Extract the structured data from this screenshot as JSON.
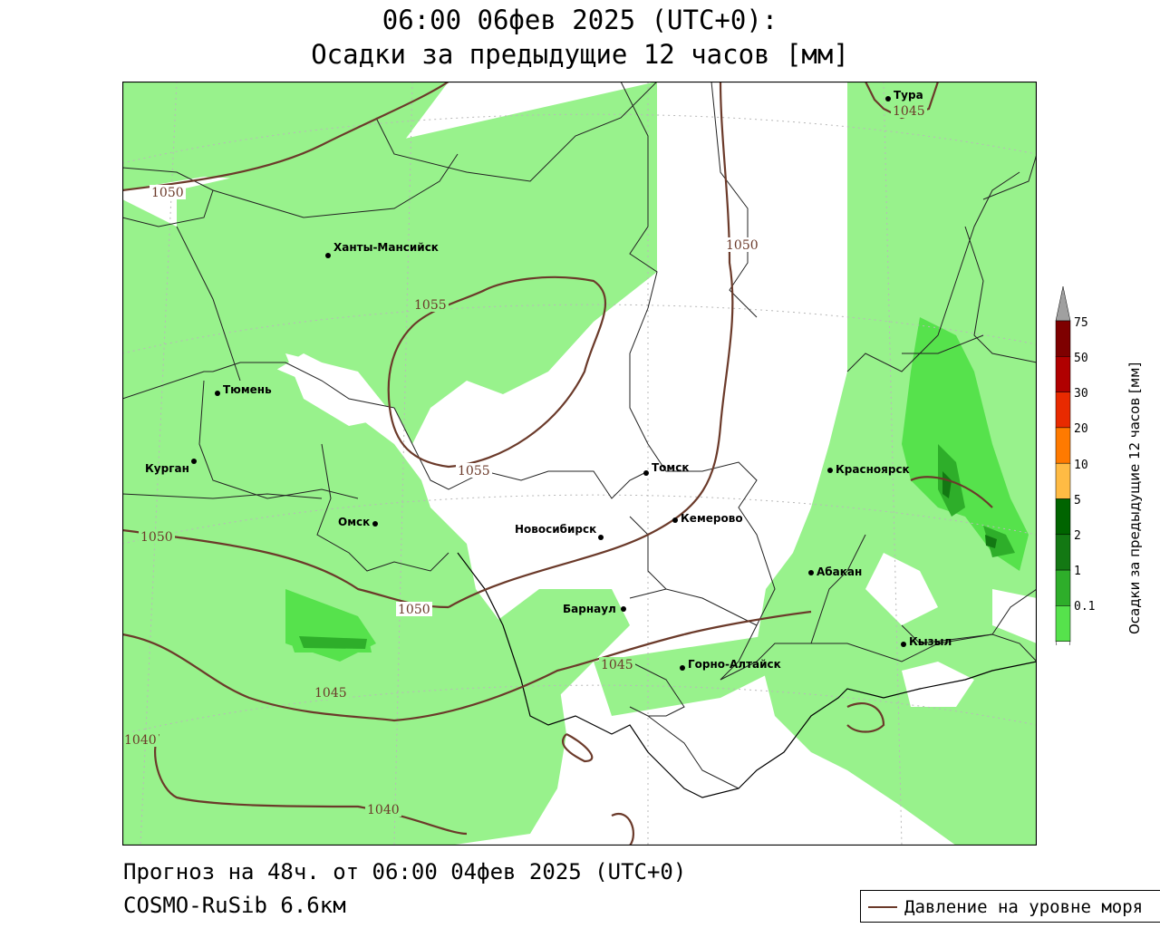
{
  "title": {
    "line1": "06:00 06фев 2025 (UTC+0):",
    "line2": "Осадки за предыдущие 12 часов [мм]"
  },
  "footer": {
    "forecast": "Прогноз на 48ч. от 06:00 04фев 2025 (UTC+0)",
    "model": "COSMO-RuSib 6.6км"
  },
  "legend": {
    "pressure_label": "Давление на уровне моря",
    "pressure_color": "#6b3a2a"
  },
  "colorbar": {
    "title": "Осадки за предыдущие 12 часов [мм]",
    "levels": [
      "0.1",
      "1",
      "2",
      "5",
      "10",
      "20",
      "30",
      "50",
      "75"
    ],
    "colors": [
      "#98f28c",
      "#56e24c",
      "#2eae2a",
      "#137813",
      "#006400",
      "#ffbb44",
      "#ff7a00",
      "#e82a00",
      "#b00000",
      "#7e0000"
    ],
    "over_color": "#a0a0a0"
  },
  "cities": [
    {
      "name": "Тура"
    },
    {
      "name": "Ханты-Мансийск"
    },
    {
      "name": "Тюмень"
    },
    {
      "name": "Курган"
    },
    {
      "name": "Омск"
    },
    {
      "name": "Новосибирск"
    },
    {
      "name": "Томск"
    },
    {
      "name": "Кемерово"
    },
    {
      "name": "Красноярск"
    },
    {
      "name": "Барнаул"
    },
    {
      "name": "Абакан"
    },
    {
      "name": "Кызыл"
    },
    {
      "name": "Горно-Алтайск"
    }
  ],
  "isobars": [
    "1045",
    "1050",
    "1050",
    "1055",
    "1055",
    "1050",
    "1050",
    "1045",
    "1045",
    "1040",
    "1040"
  ]
}
